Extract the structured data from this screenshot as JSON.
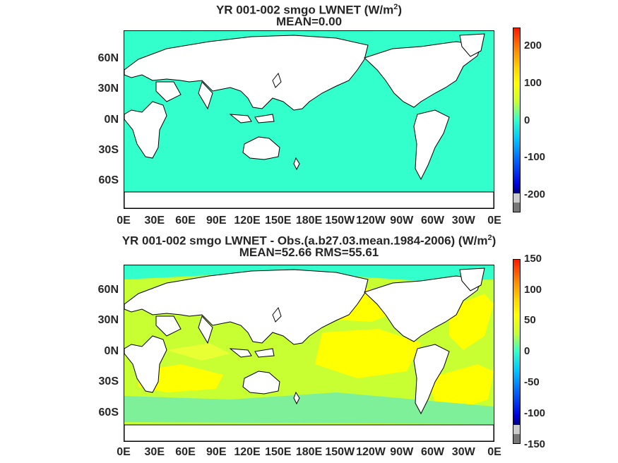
{
  "maps": [
    {
      "title_main": "YR 001-002 smgo  LWNET (W/m",
      "title_sup": "2",
      "title_end": ")",
      "subtitle": "MEAN=0.00",
      "lat_labels": [
        "60N",
        "30N",
        "0N",
        "30S",
        "60S"
      ],
      "lon_labels": [
        "0E",
        "30E",
        "60E",
        "90E",
        "120E",
        "150E",
        "180E",
        "150W",
        "120W",
        "90W",
        "60W",
        "30W",
        "0E"
      ],
      "colorbar_ticks": [
        "200",
        "100",
        "0",
        "-100",
        "-200"
      ],
      "colorbar_range": [
        -250,
        250
      ],
      "ocean_color": "#33ffcc"
    },
    {
      "title_main": "YR 001-002 smgo LWNET - Obs.(a.b27.03.mean.1984-2006) (W/m",
      "title_sup": "2",
      "title_end": ")",
      "subtitle": "MEAN=52.66 RMS=55.61",
      "lat_labels": [
        "60N",
        "30N",
        "0N",
        "30S",
        "60S"
      ],
      "lon_labels": [
        "0E",
        "30E",
        "60E",
        "90E",
        "120E",
        "150E",
        "180E",
        "150W",
        "120W",
        "90W",
        "60W",
        "30W",
        "0E"
      ],
      "colorbar_ticks": [
        "150",
        "100",
        "50",
        "0",
        "-50",
        "-100",
        "-150"
      ],
      "colorbar_range": [
        -150,
        150
      ],
      "ocean_color": "#c8ff33"
    }
  ]
}
